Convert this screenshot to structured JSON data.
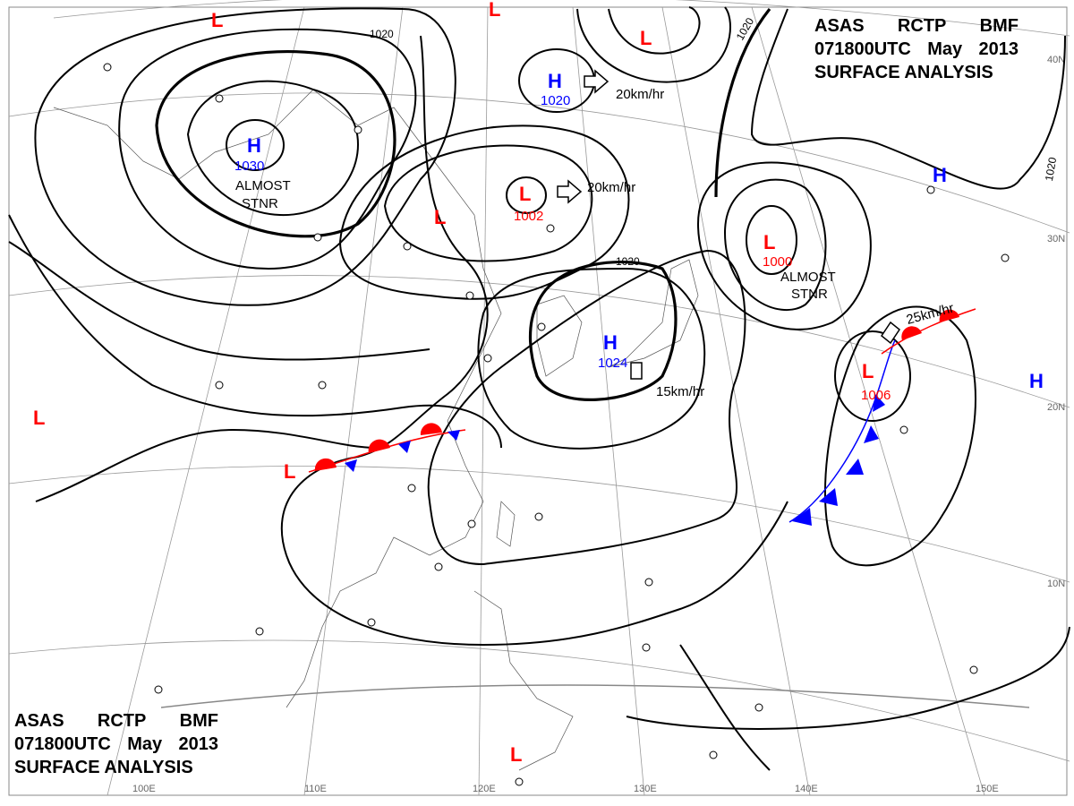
{
  "header": {
    "line1": [
      "ASAS",
      "RCTP",
      "BMF"
    ],
    "line2": [
      "071800UTC",
      "May",
      "2013"
    ],
    "line3": "SURFACE ANALYSIS"
  },
  "colors": {
    "high": "#0000ff",
    "low": "#ff0000",
    "isobar": "#000000",
    "grid": "#888888",
    "cold_front": "#0000ff",
    "warm_front": "#ff0000"
  },
  "longitude_labels": [
    "100E",
    "110E",
    "120E",
    "130E",
    "140E",
    "150E"
  ],
  "latitude_labels": [
    "40N",
    "30N",
    "20N",
    "10N"
  ],
  "isobar_labels": [
    "1020",
    "1020",
    "1020",
    "1020"
  ],
  "pressure_centers": [
    {
      "type": "H",
      "value": "1030"
    },
    {
      "type": "H",
      "value": "1020"
    },
    {
      "type": "H",
      "value": "1024"
    },
    {
      "type": "H",
      "value": ""
    },
    {
      "type": "H",
      "value": ""
    },
    {
      "type": "L",
      "value": "1002"
    },
    {
      "type": "L",
      "value": "1000"
    },
    {
      "type": "L",
      "value": "1006"
    },
    {
      "type": "L",
      "value": ""
    },
    {
      "type": "L",
      "value": ""
    },
    {
      "type": "L",
      "value": ""
    },
    {
      "type": "L",
      "value": ""
    },
    {
      "type": "L",
      "value": ""
    },
    {
      "type": "L",
      "value": ""
    },
    {
      "type": "L",
      "value": ""
    }
  ],
  "annotations": {
    "stnr_1": [
      "ALMOST",
      "STNR"
    ],
    "stnr_2": [
      "ALMOST",
      "STNR"
    ],
    "motion": [
      "20km/hr",
      "20km/hr",
      "15km/hr",
      "25km/hr"
    ]
  }
}
